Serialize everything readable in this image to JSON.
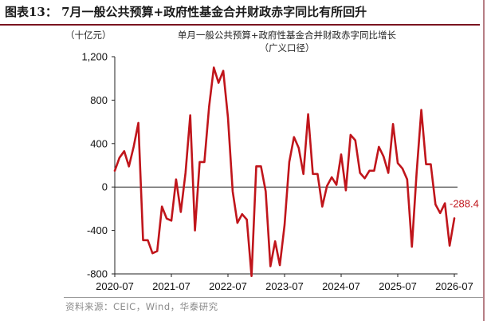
{
  "figure": {
    "title": "图表13：  7月一般公共预算+政府性基金合并财政赤字同比有所回升",
    "unit": "（十亿元）",
    "chart_title_line1": "单月一般公共预算+政府性基金合并财政赤字同比增长",
    "chart_title_line2": "（广义口径）",
    "source": "资料来源：CEIC，Wind，华泰研究"
  },
  "colors": {
    "series": "#c0151b",
    "accent_rule": "#7a1420"
  },
  "chart_data": {
    "type": "line",
    "x_tick_labels": [
      "2020-07",
      "2021-07",
      "2022-07",
      "2023-07",
      "2024-07",
      "2025-07",
      "2026-07"
    ],
    "y_tick_labels": [
      "1,200",
      "800",
      "400",
      "0",
      "-400",
      "-800"
    ],
    "ylim": [
      -800,
      1200
    ],
    "y_ticks": [
      1200,
      800,
      400,
      0,
      -400,
      -800
    ],
    "grid": false,
    "legend": "none",
    "last_value_label": "-288.4",
    "series": [
      {
        "values": [
          150,
          270,
          330,
          190,
          370,
          590,
          -490,
          -490,
          -610,
          -590,
          -180,
          -290,
          -310,
          70,
          -230,
          130,
          660,
          -400,
          230,
          230,
          740,
          1100,
          960,
          1070,
          640,
          -40,
          -330,
          -250,
          -300,
          -820,
          190,
          190,
          -40,
          -730,
          -500,
          -720,
          -350,
          230,
          460,
          360,
          120,
          670,
          120,
          120,
          -180,
          10,
          90,
          20,
          300,
          -30,
          480,
          430,
          130,
          80,
          150,
          150,
          370,
          280,
          130,
          580,
          220,
          170,
          70,
          -550,
          130,
          710,
          210,
          210,
          -160,
          -240,
          -150,
          -540,
          -288.4
        ]
      }
    ]
  }
}
